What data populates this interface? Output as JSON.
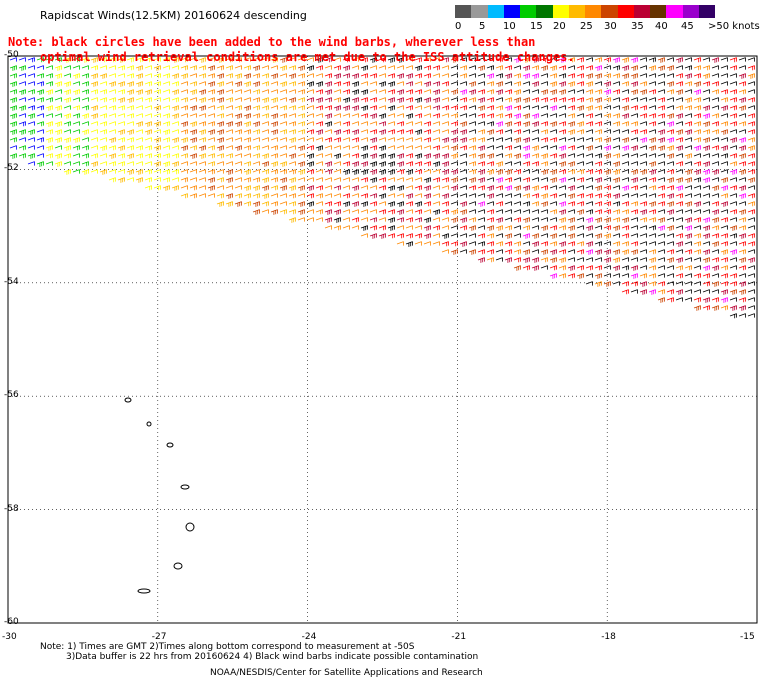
{
  "header": {
    "title": "Rapidscat Winds(12.5KM) 20160624 descending",
    "note_line1": "Note: black circles have been added to the wind barbs, wherever less than",
    "note_line2": "optimal wind retrieval conditions are met due to the ISS attitude changes."
  },
  "legend": {
    "units": "knots",
    "colors": [
      "#555555",
      "#999999",
      "#00bbff",
      "#0000ff",
      "#00cc00",
      "#007700",
      "#ffff00",
      "#ffbb00",
      "#ff8800",
      "#cc4400",
      "#ff0000",
      "#bb0033",
      "#663300",
      "#ff00ff",
      "#9900cc",
      "#330066"
    ],
    "tick_labels": [
      "0",
      "5",
      "10",
      "15",
      "20",
      "25",
      "30",
      "35",
      "40",
      "45",
      ">50 knots"
    ]
  },
  "map": {
    "lat_labels": [
      "-50",
      "-52",
      "-54",
      "-56",
      "-58",
      "-60"
    ],
    "lon_labels": [
      "-30",
      "-27",
      "-24",
      "-21",
      "-18",
      "-15"
    ],
    "lat_range": [
      -60,
      -50
    ],
    "lon_range": [
      -30,
      -15
    ]
  },
  "footer": {
    "line1": "Note: 1) Times are GMT 2)Times along bottom correspond to measurement at -50S",
    "line2": "3)Data buffer is 22 hrs from 20160624 4) Black wind barbs indicate possible contamination",
    "credit": "NOAA/NESDIS/Center for Satellite Applications and Research"
  }
}
